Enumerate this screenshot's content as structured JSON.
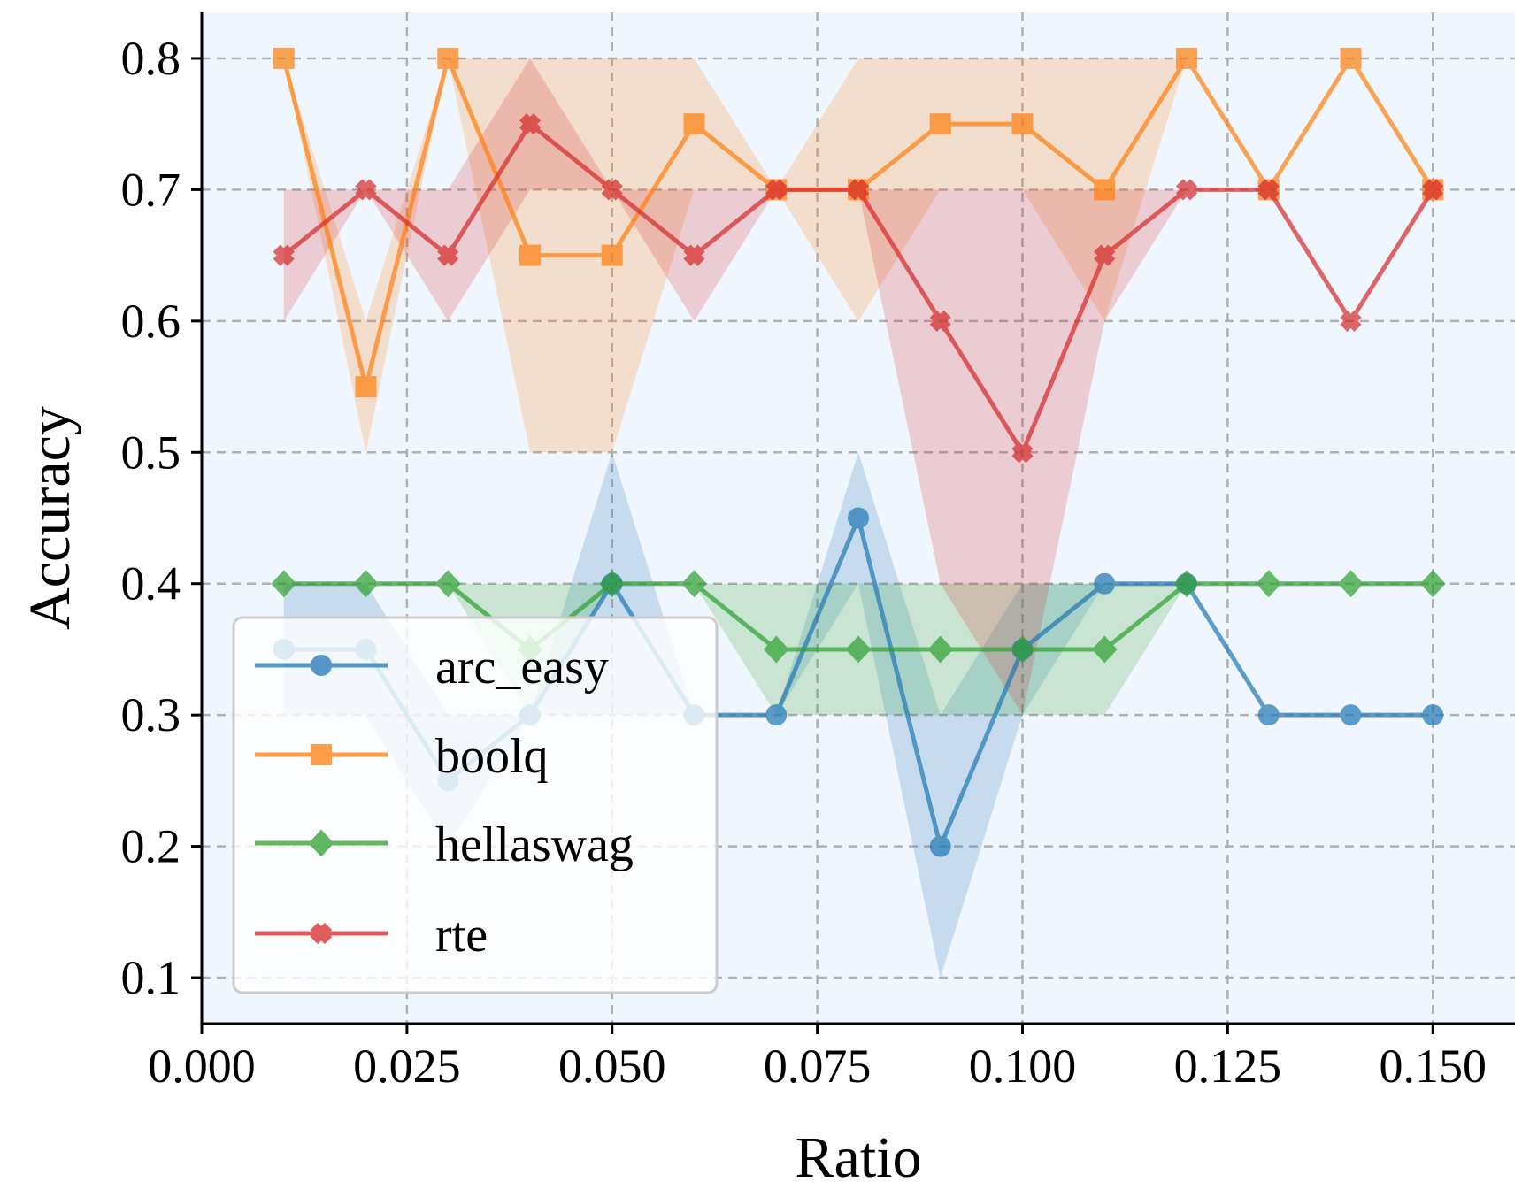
{
  "chart_data": {
    "type": "line",
    "xlabel": "Ratio",
    "ylabel": "Accuracy",
    "xlim": [
      0.0,
      0.16
    ],
    "ylim": [
      0.065,
      0.835
    ],
    "xticks": [
      0.0,
      0.025,
      0.05,
      0.075,
      0.1,
      0.125,
      0.15
    ],
    "xtick_labels": [
      "0.000",
      "0.025",
      "0.050",
      "0.075",
      "0.100",
      "0.125",
      "0.150"
    ],
    "yticks": [
      0.1,
      0.2,
      0.3,
      0.4,
      0.5,
      0.6,
      0.7,
      0.8
    ],
    "ytick_labels": [
      "0.1",
      "0.2",
      "0.3",
      "0.4",
      "0.5",
      "0.6",
      "0.7",
      "0.8"
    ],
    "grid": true,
    "legend_position": "lower-left",
    "background_color": "#f0f6fd",
    "x": [
      0.01,
      0.02,
      0.03,
      0.04,
      0.05,
      0.06,
      0.07,
      0.08,
      0.09,
      0.1,
      0.11,
      0.12,
      0.13,
      0.14,
      0.15
    ],
    "series": [
      {
        "name": "arc_easy",
        "color": "#1f77b4",
        "marker": "circle",
        "values": [
          0.35,
          0.35,
          0.25,
          0.3,
          0.4,
          0.3,
          0.3,
          0.45,
          0.2,
          0.35,
          0.4,
          0.4,
          0.3,
          0.3,
          0.3
        ],
        "band_low": [
          0.3,
          0.3,
          0.2,
          0.3,
          0.3,
          0.3,
          0.3,
          0.4,
          0.1,
          0.3,
          0.4,
          0.4,
          0.3,
          0.3,
          0.3
        ],
        "band_high": [
          0.4,
          0.4,
          0.3,
          0.3,
          0.5,
          0.3,
          0.3,
          0.5,
          0.3,
          0.4,
          0.4,
          0.4,
          0.3,
          0.3,
          0.3
        ]
      },
      {
        "name": "boolq",
        "color": "#ff7f0e",
        "marker": "square",
        "values": [
          0.8,
          0.55,
          0.8,
          0.65,
          0.65,
          0.75,
          0.7,
          0.7,
          0.75,
          0.75,
          0.7,
          0.8,
          0.7,
          0.8,
          0.7
        ],
        "band_low": [
          0.8,
          0.5,
          0.8,
          0.5,
          0.5,
          0.7,
          0.7,
          0.6,
          0.7,
          0.7,
          0.6,
          0.8,
          0.7,
          0.8,
          0.7
        ],
        "band_high": [
          0.8,
          0.6,
          0.8,
          0.8,
          0.8,
          0.8,
          0.7,
          0.8,
          0.8,
          0.8,
          0.8,
          0.8,
          0.7,
          0.8,
          0.7
        ]
      },
      {
        "name": "hellaswag",
        "color": "#2ca02c",
        "marker": "diamond",
        "values": [
          0.4,
          0.4,
          0.4,
          0.35,
          0.4,
          0.4,
          0.35,
          0.35,
          0.35,
          0.35,
          0.35,
          0.4,
          0.4,
          0.4,
          0.4
        ],
        "band_low": [
          0.4,
          0.4,
          0.4,
          0.3,
          0.4,
          0.4,
          0.3,
          0.3,
          0.3,
          0.3,
          0.3,
          0.4,
          0.4,
          0.4,
          0.4
        ],
        "band_high": [
          0.4,
          0.4,
          0.4,
          0.4,
          0.4,
          0.4,
          0.4,
          0.4,
          0.4,
          0.4,
          0.4,
          0.4,
          0.4,
          0.4,
          0.4
        ]
      },
      {
        "name": "rte",
        "color": "#d62728",
        "marker": "x",
        "values": [
          0.65,
          0.7,
          0.65,
          0.75,
          0.7,
          0.65,
          0.7,
          0.7,
          0.6,
          0.5,
          0.65,
          0.7,
          0.7,
          0.6,
          0.7
        ],
        "band_low": [
          0.6,
          0.7,
          0.6,
          0.7,
          0.7,
          0.6,
          0.7,
          0.7,
          0.4,
          0.3,
          0.6,
          0.7,
          0.7,
          0.6,
          0.7
        ],
        "band_high": [
          0.7,
          0.7,
          0.7,
          0.8,
          0.7,
          0.7,
          0.7,
          0.7,
          0.7,
          0.7,
          0.7,
          0.7,
          0.7,
          0.6,
          0.7
        ]
      }
    ]
  }
}
